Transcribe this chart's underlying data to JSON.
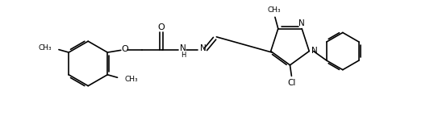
{
  "bg_color": "#ffffff",
  "lw": 1.2,
  "fs": 7.0,
  "fig_width": 5.38,
  "fig_height": 1.54,
  "dpi": 100,
  "xlim": [
    0,
    11.0
  ],
  "ylim": [
    -0.5,
    3.5
  ]
}
